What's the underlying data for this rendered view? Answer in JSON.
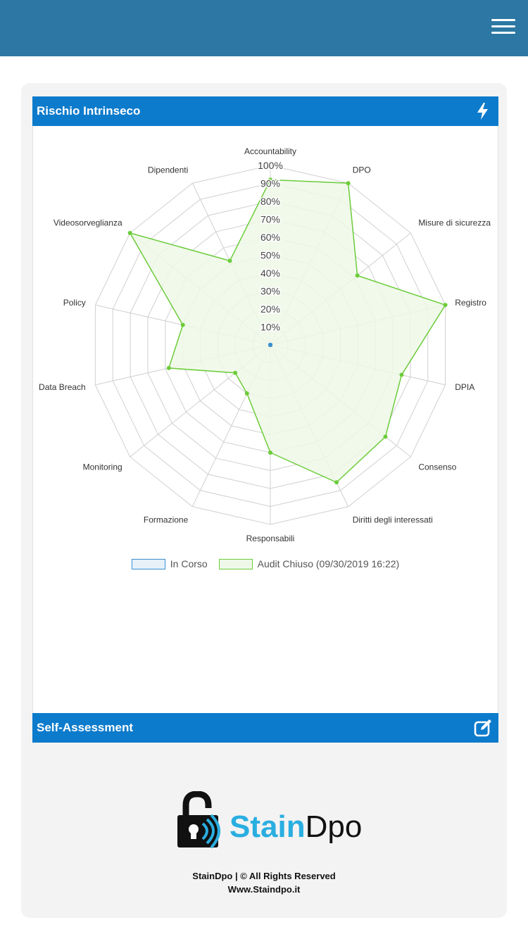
{
  "header": {
    "menu_icon": "hamburger-menu-icon",
    "color": "#2c77a3"
  },
  "risk_section": {
    "title": "Rischio Intrinseco",
    "icon": "lightning-bolt-icon",
    "color": "#0d7bcc"
  },
  "self_section": {
    "title": "Self-Assessment",
    "icon": "edit-icon"
  },
  "chart_data": {
    "type": "radar",
    "categories": [
      "Accountability",
      "DPO",
      "Misure di sicurezza",
      "Registro",
      "DPIA",
      "Consenso",
      "Diritti degli interessati",
      "Responsabili",
      "Formazione",
      "Monitoring",
      "Data Breach",
      "Policy",
      "Videosorveglianza",
      "Dipendenti"
    ],
    "tick_labels": [
      "10%",
      "20%",
      "30%",
      "40%",
      "50%",
      "60%",
      "70%",
      "80%",
      "90%",
      "100%"
    ],
    "rlim": [
      0,
      100
    ],
    "series": [
      {
        "name": "In Corso",
        "values": [
          0,
          0,
          0,
          0,
          0,
          0,
          0,
          0,
          0,
          0,
          0,
          0,
          0,
          0
        ],
        "color": "#3b8fd0",
        "fill": "#e6f1fa"
      },
      {
        "name": "Audit Chiuso (09/30/2019 16:22)",
        "values": [
          92,
          100,
          62,
          100,
          75,
          82,
          85,
          60,
          30,
          25,
          58,
          50,
          100,
          52
        ],
        "color": "#6ccc3a",
        "fill": "#eef8e8"
      }
    ],
    "legend": "bottom",
    "grid": true
  },
  "footer": {
    "brand_part1": "Stain",
    "brand_part2": "Dpo",
    "logo_icon": "padlock-logo-icon",
    "copyright": "StainDpo | © All Rights Reserved",
    "website": "Www.Staindpo.it"
  }
}
